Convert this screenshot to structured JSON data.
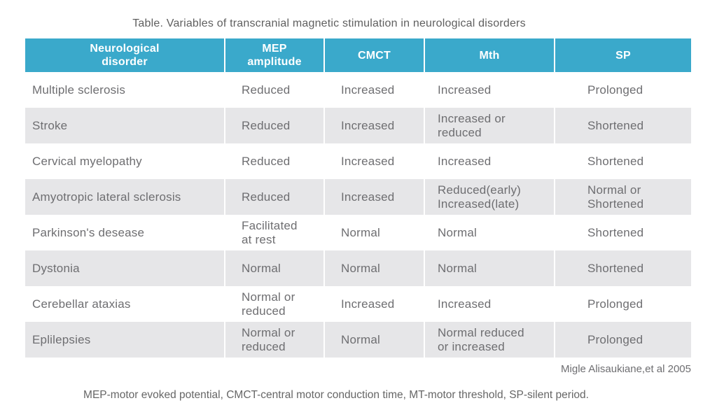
{
  "title": "Table. Variables of transcranial magnetic stimulation in neurological disorders",
  "table": {
    "columns": [
      "Neurological\ndisorder",
      "MEP\namplitude",
      "CMCT",
      "Mth",
      "SP"
    ],
    "rows": [
      [
        "Multiple sclerosis",
        "Reduced",
        "Increased",
        "Increased",
        "Prolonged"
      ],
      [
        "Stroke",
        "Reduced",
        "Increased",
        "Increased or\nreduced",
        "Shortened"
      ],
      [
        "Cervical myelopathy",
        "Reduced",
        "Increased",
        "Increased",
        "Shortened"
      ],
      [
        "Amyotropic lateral sclerosis",
        "Reduced",
        "Increased",
        "Reduced(early)\nIncreased(late)",
        "Normal or\nShortened"
      ],
      [
        "Parkinson's desease",
        "Facilitated\nat rest",
        "Normal",
        "Normal",
        "Shortened"
      ],
      [
        "Dystonia",
        "Normal",
        "Normal",
        "Normal",
        "Shortened"
      ],
      [
        "Cerebellar ataxias",
        "Normal or\nreduced",
        "Increased",
        "Increased",
        "Prolonged"
      ],
      [
        "Eplilepsies",
        "Normal or\nreduced",
        "Normal",
        "Normal reduced\nor increased",
        "Prolonged"
      ]
    ]
  },
  "attribution": "Migle Alisaukiane,et al 2005",
  "footnote": "MEP-motor evoked potential, CMCT-central motor conduction time, MT-motor threshold, SP-silent period.",
  "colors": {
    "header_bg": "#3aa9cb",
    "alt_row_bg": "#e6e6e8",
    "body_text": "#6e6e71",
    "header_text": "#ffffff"
  }
}
